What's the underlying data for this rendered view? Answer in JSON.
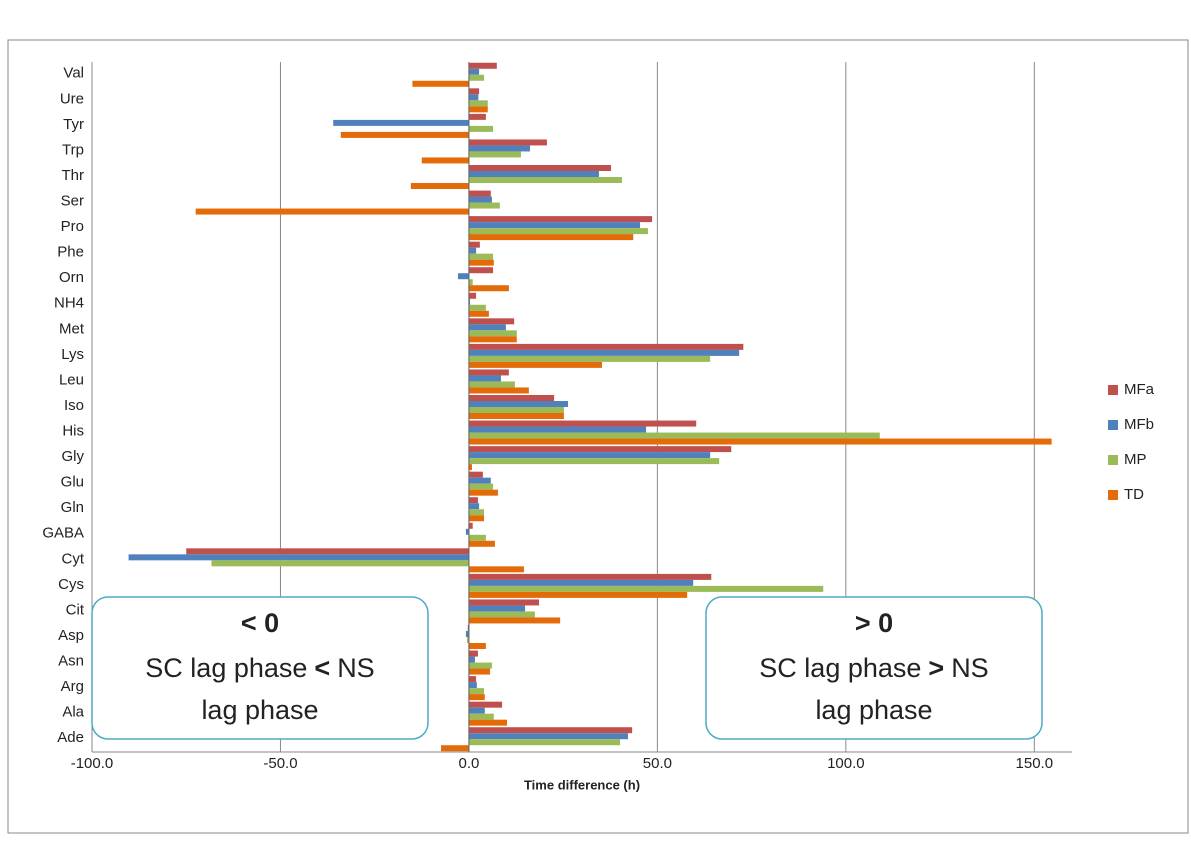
{
  "chart_data": {
    "type": "bar",
    "orientation": "horizontal",
    "x_label": "Time difference (h)",
    "categories": [
      "Ade",
      "Ala",
      "Arg",
      "Asn",
      "Asp",
      "Cit",
      "Cys",
      "Cyt",
      "GABA",
      "Gln",
      "Glu",
      "Gly",
      "His",
      "Iso",
      "Leu",
      "Lys",
      "Met",
      "NH4",
      "Orn",
      "Phe",
      "Pro",
      "Ser",
      "Thr",
      "Trp",
      "Tyr",
      "Ure",
      "Val"
    ],
    "series": [
      {
        "name": "MFa",
        "color": "#c0504d",
        "values": [
          43.3,
          8.8,
          1.9,
          2.4,
          -0.3,
          18.6,
          64.3,
          -75,
          1,
          2.4,
          3.7,
          69.6,
          60.3,
          22.6,
          10.6,
          72.8,
          12,
          1.9,
          6.4,
          2.9,
          48.6,
          5.8,
          37.7,
          20.7,
          4.5,
          2.7,
          7.4
        ]
      },
      {
        "name": "MFb",
        "color": "#4f81bd",
        "values": [
          42.2,
          4.2,
          2.1,
          1.6,
          -0.8,
          14.9,
          59.5,
          -90.3,
          -0.8,
          2.7,
          5.8,
          64,
          47,
          26.3,
          8.5,
          71.7,
          9.8,
          0.3,
          -2.9,
          1.9,
          45.4,
          6.1,
          34.5,
          16.2,
          -36,
          2.5,
          2.7
        ]
      },
      {
        "name": "MP",
        "color": "#9bbb59",
        "values": [
          40.1,
          6.6,
          4,
          6.1,
          -0.5,
          17.5,
          94,
          -68.3,
          4.5,
          4,
          6.4,
          66.4,
          109,
          25.2,
          12.2,
          64,
          12.7,
          4.5,
          1,
          6.4,
          47.5,
          8.2,
          40.6,
          13.8,
          6.4,
          5,
          4
        ]
      },
      {
        "name": "TD",
        "color": "#e36c09",
        "values": [
          -7.4,
          10.1,
          4.2,
          5.6,
          4.5,
          24.2,
          57.9,
          14.6,
          6.9,
          4,
          7.7,
          0.8,
          154.6,
          25.2,
          15.9,
          35.3,
          12.7,
          5.3,
          10.6,
          6.6,
          43.6,
          -72.5,
          -15.4,
          -12.5,
          -34,
          5,
          -15
        ]
      }
    ],
    "xlim": [
      -100,
      160
    ],
    "xticks": [
      {
        "value": -100,
        "label": "-100.0"
      },
      {
        "value": -50,
        "label": "-50.0"
      },
      {
        "value": 0,
        "label": "0.0"
      },
      {
        "value": 50,
        "label": "50.0"
      },
      {
        "value": 100,
        "label": "100.0"
      },
      {
        "value": 150,
        "label": "150.0"
      }
    ],
    "grid": true,
    "legend": "right",
    "annotations": [
      {
        "heading": "< 0",
        "line1": [
          "SC lag phase",
          "<",
          "NS"
        ],
        "line2": "lag phase"
      },
      {
        "heading": "> 0",
        "line1": [
          "SC lag phase",
          ">",
          "NS"
        ],
        "line2": "lag phase"
      }
    ]
  }
}
